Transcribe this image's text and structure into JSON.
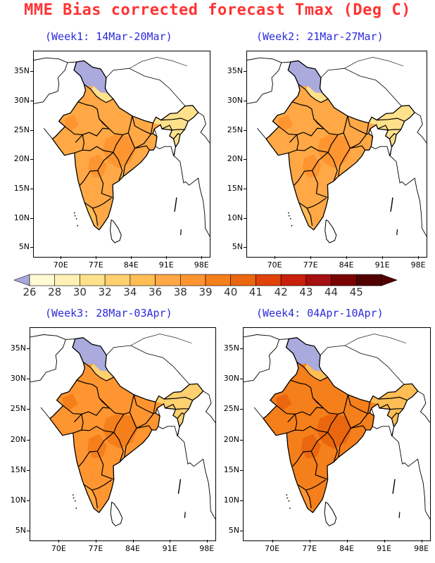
{
  "title": "MME Bias corrected forecast Tmax (Deg C)",
  "colors": {
    "title": "#ff3333",
    "subtitle": "#2b2bd9",
    "below_26": "#a9a9dd",
    "bins": [
      "#fff9d4",
      "#fff0b4",
      "#ffe18c",
      "#ffd070",
      "#ffbd55",
      "#ffa845",
      "#ff9530",
      "#f57f1a",
      "#ea660f",
      "#e04208",
      "#c8200a",
      "#a50f0f",
      "#7a0404",
      "#520000"
    ],
    "masked": "#aaaadd"
  },
  "colorbar": {
    "labels": [
      "26",
      "28",
      "30",
      "32",
      "34",
      "36",
      "38",
      "39",
      "40",
      "41",
      "42",
      "43",
      "44",
      "45"
    ]
  },
  "axes": {
    "lat_labels": [
      "35N",
      "30N",
      "25N",
      "20N",
      "15N",
      "10N",
      "5N"
    ],
    "lat_values": [
      35,
      30,
      25,
      20,
      15,
      10,
      5
    ],
    "lon_labels": [
      "70E",
      "77E",
      "84E",
      "91E",
      "98E"
    ],
    "lon_values": [
      70,
      77,
      84,
      91,
      98
    ],
    "lat_range": [
      3.5,
      38.5
    ],
    "lon_range": [
      64.5,
      99.5
    ]
  },
  "panels": [
    {
      "id": "week1",
      "subtitle": "(Week1: 14Mar-20Mar)",
      "dominant_tmax": "36",
      "hot_core_tmax": "38"
    },
    {
      "id": "week2",
      "subtitle": "(Week2: 21Mar-27Mar)",
      "dominant_tmax": "36",
      "hot_core_tmax": "38"
    },
    {
      "id": "week3",
      "subtitle": "(Week3: 28Mar-03Apr)",
      "dominant_tmax": "38",
      "hot_core_tmax": "39"
    },
    {
      "id": "week4",
      "subtitle": "(Week4: 04Apr-10Apr)",
      "dominant_tmax": "39",
      "hot_core_tmax": "40"
    }
  ]
}
